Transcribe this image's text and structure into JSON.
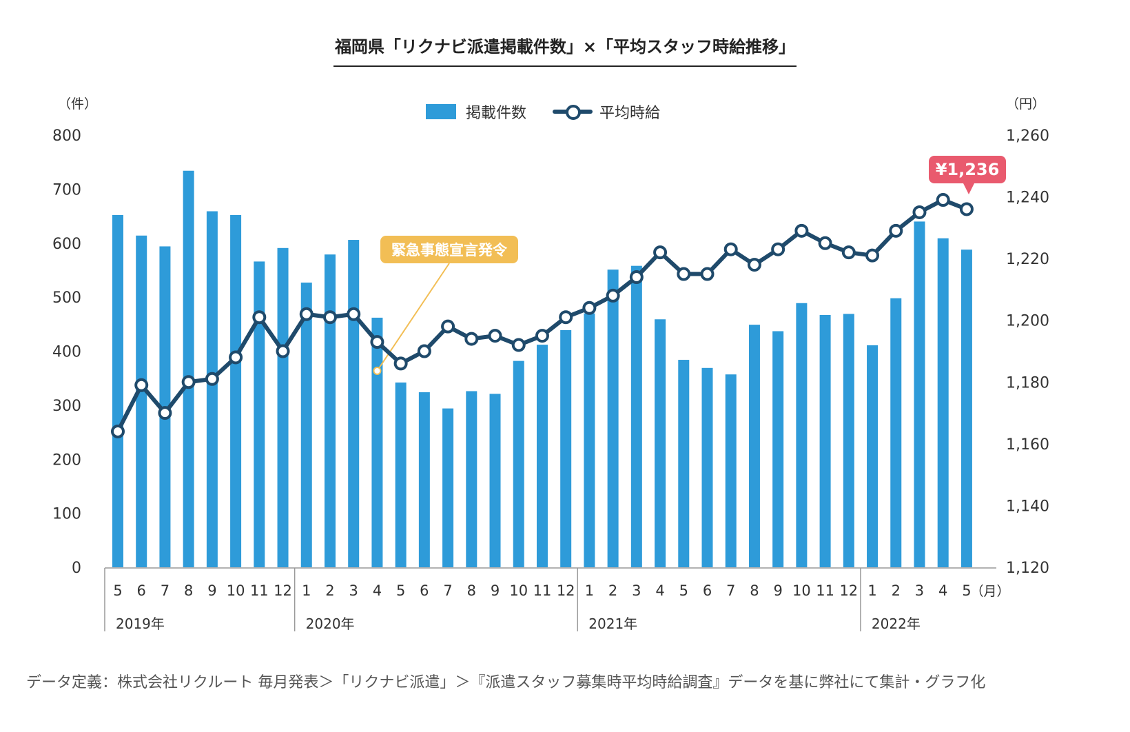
{
  "title": "福岡県「リクナビ派遣掲載件数」×「平均スタッフ時給推移」",
  "legend": {
    "bar_label": "掲載件数",
    "line_label": "平均時給"
  },
  "units": {
    "left": "（件）",
    "right": "（円）",
    "month": "（月）"
  },
  "callouts": {
    "emergency": "緊急事態宣言発令",
    "latest_wage": "¥1,236"
  },
  "footnote": "データ定義：株式会社リクルート 毎月発表＞「リクナビ派遣」＞『派遣スタッフ募集時平均時給調査』データを基に弊社にて集計・グラフ化",
  "colors": {
    "bar": "#2E9BD9",
    "line": "#1F4A6B",
    "callout_orange": "#F2BE55",
    "callout_red": "#E95A6E"
  },
  "chart_data": {
    "type": "bar+line",
    "categories": [
      "5",
      "6",
      "7",
      "8",
      "9",
      "10",
      "11",
      "12",
      "1",
      "2",
      "3",
      "4",
      "5",
      "6",
      "7",
      "8",
      "9",
      "10",
      "11",
      "12",
      "1",
      "2",
      "3",
      "4",
      "5",
      "6",
      "7",
      "8",
      "9",
      "10",
      "11",
      "12",
      "1",
      "2",
      "3",
      "4",
      "5"
    ],
    "year_groups": [
      {
        "label": "2019年",
        "start_index": 0
      },
      {
        "label": "2020年",
        "start_index": 8
      },
      {
        "label": "2021年",
        "start_index": 20
      },
      {
        "label": "2022年",
        "start_index": 32
      }
    ],
    "series": [
      {
        "name": "掲載件数",
        "type": "bar",
        "axis": "left",
        "values": [
          652,
          614,
          594,
          734,
          659,
          652,
          566,
          591,
          527,
          579,
          606,
          462,
          342,
          324,
          294,
          326,
          321,
          382,
          412,
          439,
          470,
          551,
          558,
          459,
          384,
          369,
          357,
          449,
          437,
          489,
          467,
          469,
          411,
          498,
          640,
          609,
          588
        ]
      },
      {
        "name": "平均時給",
        "type": "line",
        "axis": "right",
        "values": [
          1164,
          1179,
          1170,
          1180,
          1181,
          1188,
          1201,
          1190,
          1202,
          1201,
          1202,
          1193,
          1186,
          1190,
          1198,
          1194,
          1195,
          1192,
          1195,
          1201,
          1204,
          1208,
          1214,
          1222,
          1215,
          1215,
          1223,
          1218,
          1223,
          1229,
          1225,
          1222,
          1221,
          1229,
          1235,
          1239,
          1236
        ]
      }
    ],
    "y_left": {
      "ticks": [
        "0",
        "100",
        "200",
        "300",
        "400",
        "500",
        "600",
        "700",
        "800"
      ],
      "min": 0,
      "max": 800
    },
    "y_right": {
      "ticks": [
        "1,120",
        "1,140",
        "1,160",
        "1,180",
        "1,200",
        "1,220",
        "1,240",
        "1,260"
      ],
      "min": 1120,
      "max": 1260
    },
    "annotation_emergency_index": 11,
    "annotation_latest_index": 36,
    "grid": false,
    "legend_position": "top-center"
  }
}
